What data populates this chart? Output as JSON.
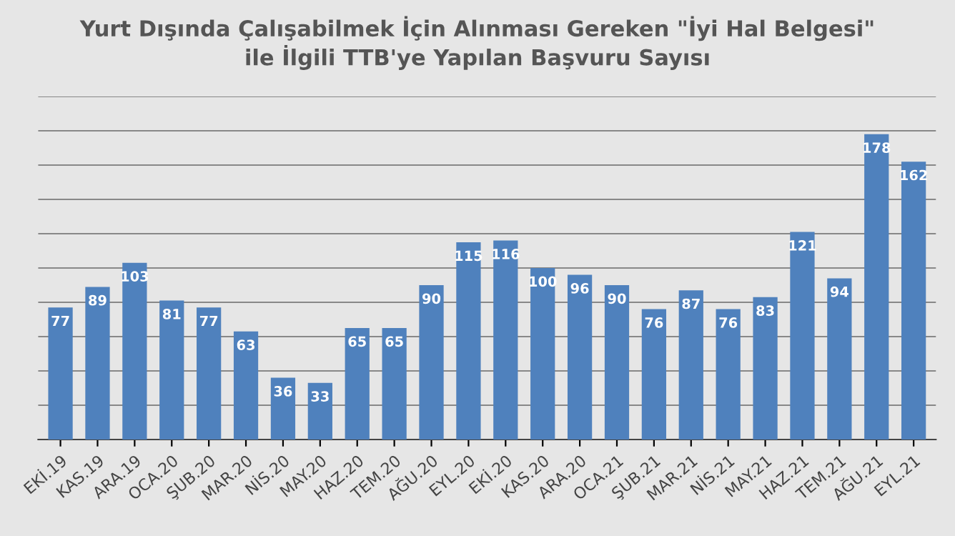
{
  "chart_data": {
    "type": "bar",
    "title": "Yurt Dışında Çalışabilmek İçin Alınması Gereken \"İyi Hal Belgesi\"\nile İlgili TTB'ye Yapılan Başvuru Sayısı",
    "categories": [
      "EKİ.19",
      "KAS.19",
      "ARA.19",
      "OCA.20",
      "ŞUB.20",
      "MAR.20",
      "NİS.20",
      "MAY.20",
      "HAZ.20",
      "TEM.20",
      "AĞU.20",
      "EYL.20",
      "EKİ.20",
      "KAS.20",
      "ARA.20",
      "OCA.21",
      "ŞUB.21",
      "MAR.21",
      "NİS.21",
      "MAY.21",
      "HAZ.21",
      "TEM.21",
      "AĞU.21",
      "EYL.21"
    ],
    "values": [
      77,
      89,
      103,
      81,
      77,
      63,
      36,
      33,
      65,
      65,
      90,
      115,
      116,
      100,
      96,
      90,
      76,
      87,
      76,
      83,
      121,
      94,
      178,
      162
    ],
    "color": "#4f81bd",
    "ylim": [
      0,
      200
    ],
    "yticks": [
      {
        "value": 0,
        "label": null
      },
      {
        "value": 20,
        "label": null
      },
      {
        "value": 40,
        "label": null
      },
      {
        "value": 60,
        "label": null
      },
      {
        "value": 80,
        "label": null
      },
      {
        "value": 100,
        "label": null
      },
      {
        "value": 120,
        "label": null
      },
      {
        "value": 140,
        "label": null
      },
      {
        "value": 160,
        "label": null
      },
      {
        "value": 180,
        "label": null
      },
      {
        "value": 200,
        "label": null
      }
    ],
    "tick_labels": "x",
    "grid": "y",
    "data_labels": true
  }
}
